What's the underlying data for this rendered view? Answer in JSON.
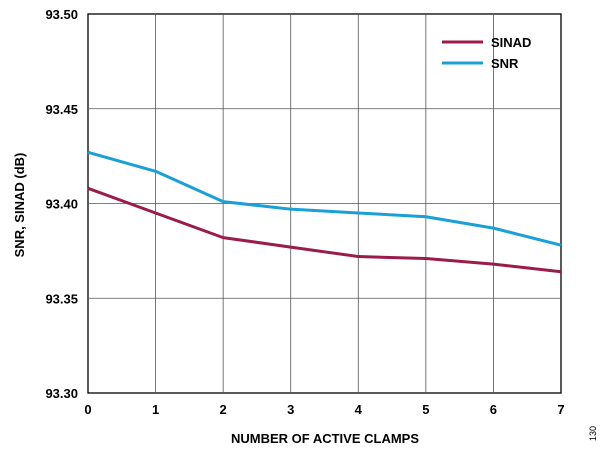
{
  "chart_data": {
    "type": "line",
    "xlabel": "NUMBER OF ACTIVE CLAMPS",
    "ylabel": "SNR, SINAD (dB)",
    "x": [
      0,
      1,
      2,
      3,
      4,
      5,
      6,
      7
    ],
    "xlim": [
      0,
      7
    ],
    "ylim": [
      93.3,
      93.5
    ],
    "x_ticks": [
      "0",
      "1",
      "2",
      "3",
      "4",
      "5",
      "6",
      "7"
    ],
    "y_ticks": [
      "93.30",
      "93.35",
      "93.40",
      "93.45",
      "93.50"
    ],
    "grid": true,
    "legend_position": "top-right",
    "series": [
      {
        "name": "SINAD",
        "color": "#9b1b4a",
        "values": [
          93.408,
          93.395,
          93.382,
          93.377,
          93.372,
          93.371,
          93.368,
          93.364
        ]
      },
      {
        "name": "SNR",
        "color": "#1aa0d6",
        "values": [
          93.427,
          93.417,
          93.401,
          93.397,
          93.395,
          93.393,
          93.387,
          93.378
        ]
      }
    ],
    "figure_id": "130"
  }
}
